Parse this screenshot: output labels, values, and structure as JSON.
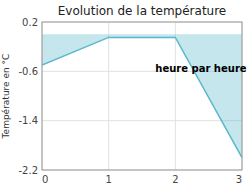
{
  "chart_data": {
    "type": "area",
    "title": "Evolution de la température",
    "y_label": "Température en °C",
    "x": [
      0,
      1,
      2,
      3
    ],
    "values": [
      -0.5,
      -0.05,
      -0.05,
      -2.0
    ],
    "color": "#5ab8cc",
    "xlim": [
      0,
      3
    ],
    "ylim": [
      -2.2,
      0.2
    ],
    "xticks": [
      0,
      1,
      2,
      3
    ],
    "yticks": [
      0.2,
      -0.6,
      -1.4,
      -2.2
    ],
    "grid": true,
    "annotations": [
      {
        "text": "heure par heure",
        "x": 1.7,
        "y": -0.55
      }
    ]
  }
}
